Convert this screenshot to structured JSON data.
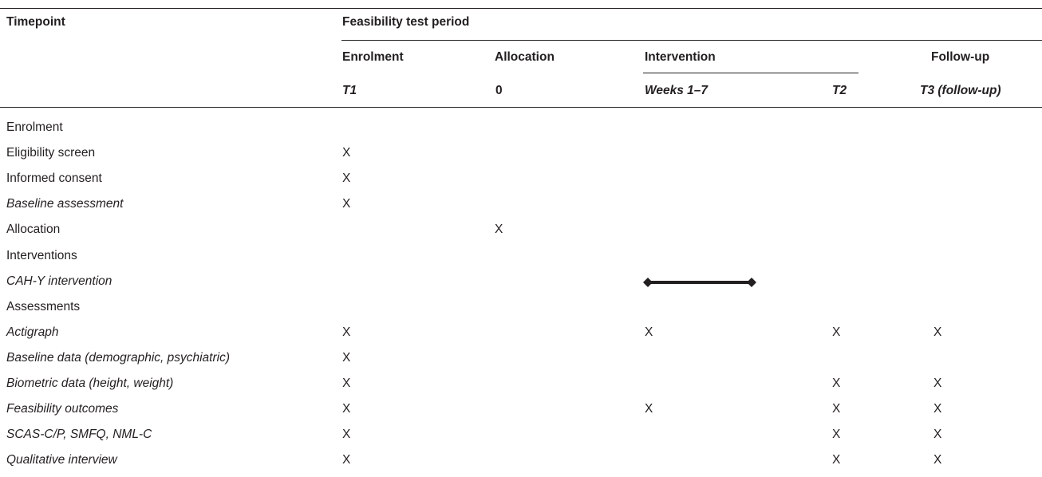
{
  "table": {
    "header": {
      "timepoint_label": "Timepoint",
      "period_label": "Feasibility test period",
      "groups": {
        "enrolment": "Enrolment",
        "allocation": "Allocation",
        "intervention": "Intervention",
        "followup": "Follow-up"
      },
      "subheaders": {
        "t1": "T1",
        "zero": "0",
        "weeks": "Weeks 1–7",
        "t2": "T2",
        "t3": "T3 (follow-up)"
      }
    },
    "rows": [
      {
        "label": "Enrolment",
        "italic": false,
        "marks": []
      },
      {
        "label": "Eligibility screen",
        "italic": false,
        "marks": [
          "t1"
        ]
      },
      {
        "label": "Informed consent",
        "italic": false,
        "marks": [
          "t1"
        ]
      },
      {
        "label": "Baseline assessment",
        "italic": true,
        "marks": [
          "t1"
        ]
      },
      {
        "label": "Allocation",
        "italic": false,
        "marks": [
          "zero"
        ]
      },
      {
        "label": "Interventions",
        "italic": false,
        "marks": []
      },
      {
        "label": "CAH-Y intervention",
        "italic": true,
        "marks": [],
        "span": "weeks"
      },
      {
        "label": "Assessments",
        "italic": false,
        "marks": []
      },
      {
        "label": "Actigraph",
        "italic": true,
        "marks": [
          "t1",
          "weeks",
          "t2",
          "t3"
        ]
      },
      {
        "label": "Baseline data (demographic, psychiatric)",
        "italic": true,
        "marks": [
          "t1"
        ]
      },
      {
        "label": "Biometric data (height, weight)",
        "italic": true,
        "marks": [
          "t1",
          "t2",
          "t3"
        ]
      },
      {
        "label": "Feasibility outcomes",
        "italic": true,
        "marks": [
          "t1",
          "weeks",
          "t2",
          "t3"
        ]
      },
      {
        "label": "SCAS-C/P, SMFQ, NML-C",
        "italic": true,
        "marks": [
          "t1",
          "t2",
          "t3"
        ]
      },
      {
        "label": "Qualitative interview",
        "italic": true,
        "marks": [
          "t1",
          "t2",
          "t3"
        ]
      }
    ],
    "mark_symbol": "X"
  }
}
